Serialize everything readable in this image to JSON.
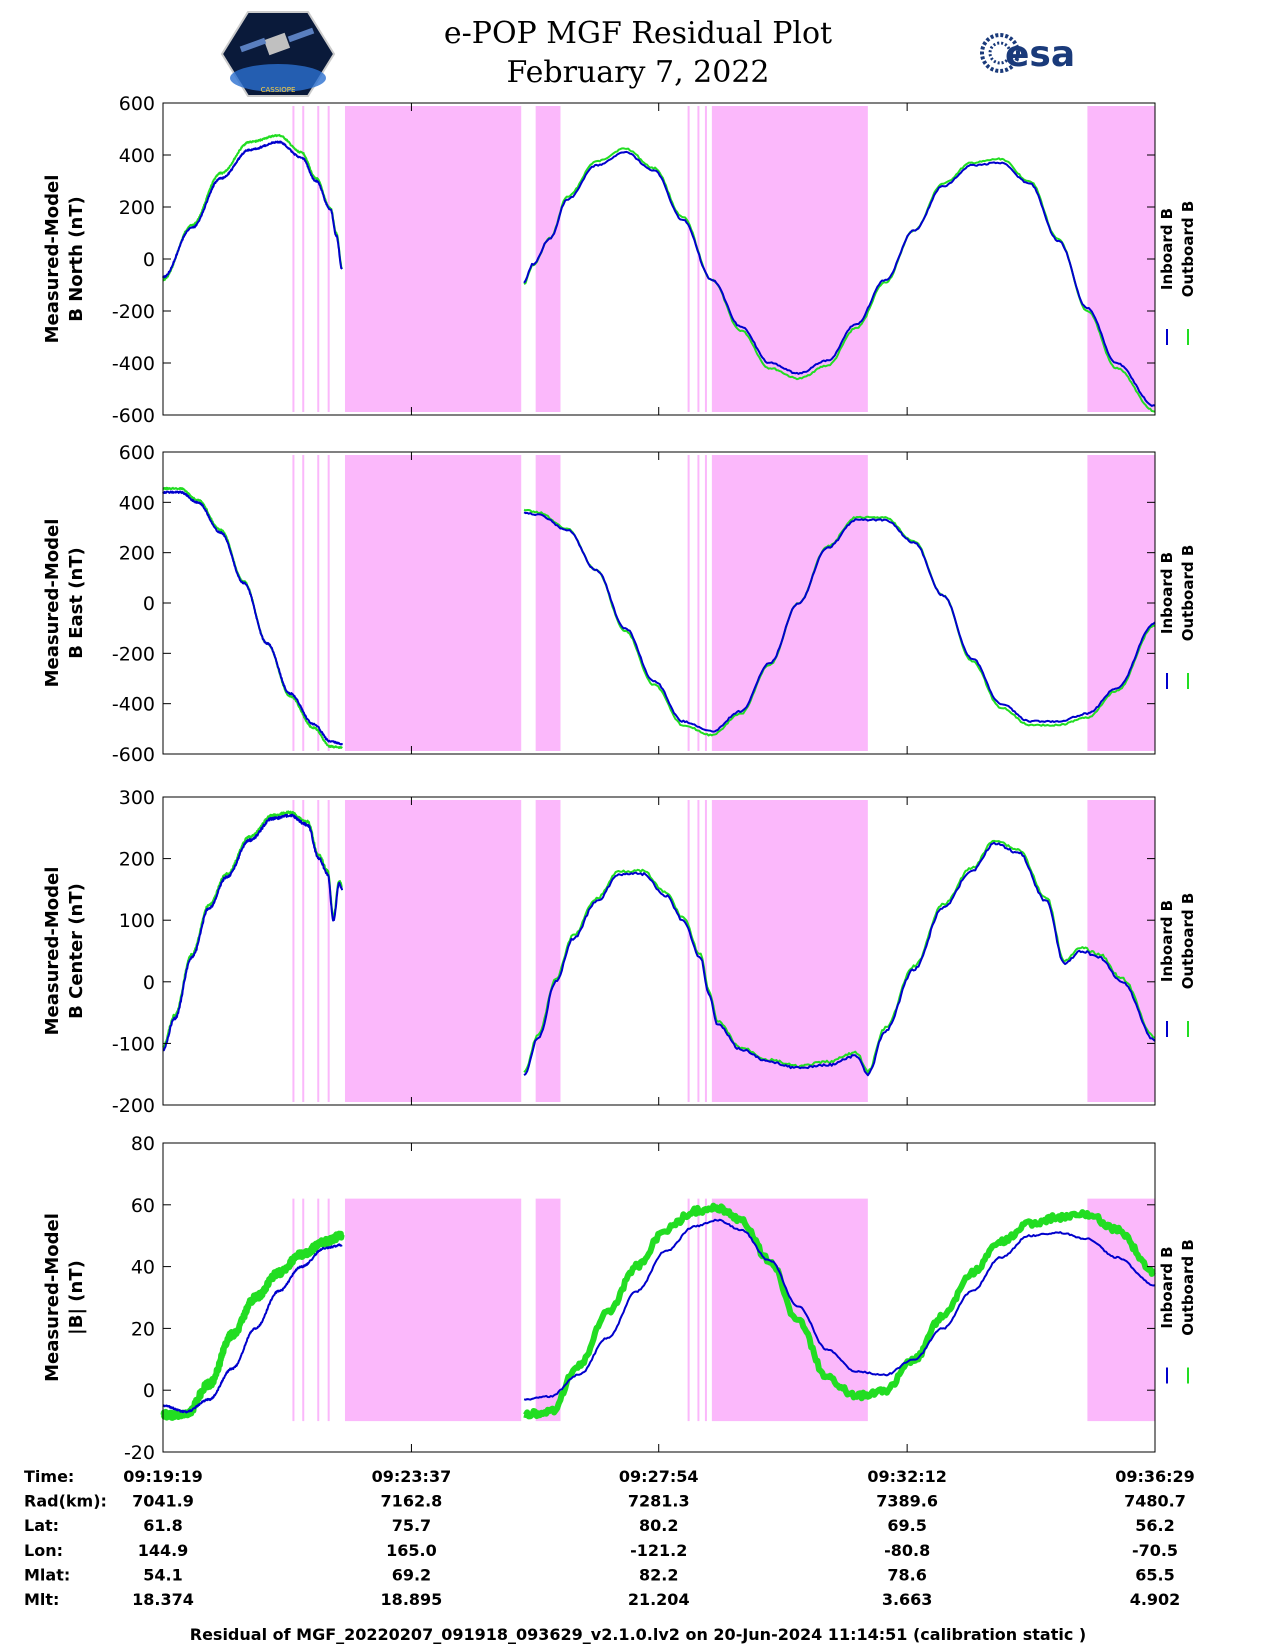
{
  "chart_data": {
    "type": "line",
    "title": "e-POP MGF Residual Plot",
    "subtitle": "February 7, 2022",
    "logos": {
      "left": "CASSIOPE",
      "right": "esa"
    },
    "colors": {
      "inboard": "#0000cc",
      "outboard": "#22dd22",
      "gap_shading": "#fbb8fb"
    },
    "legend": [
      "Inboard B",
      "Outboard B"
    ],
    "legend_position": "right",
    "x_minutes_range": [
      0,
      17.17
    ],
    "x_ticks_minutes": [
      0,
      4.3,
      8.58,
      12.88,
      17.17
    ],
    "gaps_minutes": [
      [
        2.24,
        2.27
      ],
      [
        2.41,
        2.44
      ],
      [
        2.67,
        2.7
      ],
      [
        2.85,
        2.88
      ],
      [
        3.15,
        6.2
      ],
      [
        6.45,
        6.88
      ],
      [
        9.08,
        9.11
      ],
      [
        9.25,
        9.28
      ],
      [
        9.38,
        9.41
      ],
      [
        9.5,
        12.2
      ],
      [
        16.0,
        17.17
      ]
    ],
    "panels": [
      {
        "ylabel_line1": "Measured-Model",
        "ylabel_line2": "B North (nT)",
        "ylim": [
          -600,
          600
        ],
        "yticks": [
          "600",
          "400",
          "200",
          "0",
          "-200",
          "-400",
          "-600"
        ],
        "series": [
          {
            "name": "Inboard B",
            "segments": [
              {
                "x": [
                  0,
                  0.5,
                  1.0,
                  1.5,
                  2.0,
                  2.4,
                  2.65,
                  2.9,
                  3.0,
                  3.1
                ],
                "y": [
                  -70,
                  120,
                  310,
                  420,
                  450,
                  390,
                  300,
                  190,
                  90,
                  -40
                ]
              },
              {
                "x": [
                  6.25,
                  6.4,
                  6.7,
                  7.0,
                  7.5,
                  8.0,
                  8.5,
                  9.0,
                  9.5,
                  10.0,
                  10.5,
                  11.0,
                  11.5,
                  12.0,
                  12.5,
                  13.0,
                  13.5,
                  14.0,
                  14.5,
                  15.0,
                  15.5,
                  16.0,
                  16.5,
                  17.17
                ],
                "y": [
                  -90,
                  -20,
                  80,
                  230,
                  360,
                  410,
                  340,
                  150,
                  -80,
                  -260,
                  -400,
                  -440,
                  -390,
                  -250,
                  -80,
                  110,
                  280,
                  360,
                  370,
                  290,
                  70,
                  -190,
                  -400,
                  -565
                ]
              }
            ]
          },
          {
            "name": "Outboard B",
            "segments": [
              {
                "x": [
                  0,
                  0.5,
                  1.0,
                  1.5,
                  2.0,
                  2.4,
                  2.65,
                  2.9,
                  3.0,
                  3.1
                ],
                "y": [
                  -80,
                  130,
                  330,
                  450,
                  475,
                  410,
                  310,
                  195,
                  100,
                  -35
                ]
              },
              {
                "x": [
                  6.25,
                  6.4,
                  6.7,
                  7.0,
                  7.5,
                  8.0,
                  8.5,
                  9.0,
                  9.5,
                  10.0,
                  10.5,
                  11.0,
                  11.5,
                  12.0,
                  12.5,
                  13.0,
                  13.5,
                  14.0,
                  14.5,
                  15.0,
                  15.5,
                  16.0,
                  16.5,
                  17.17
                ],
                "y": [
                  -95,
                  -25,
                  80,
                  240,
                  375,
                  425,
                  350,
                  160,
                  -80,
                  -275,
                  -420,
                  -460,
                  -410,
                  -265,
                  -90,
                  110,
                  290,
                  370,
                  385,
                  300,
                  75,
                  -200,
                  -420,
                  -585
                ]
              }
            ]
          }
        ]
      },
      {
        "ylabel_line1": "Measured-Model",
        "ylabel_line2": "B East (nT)",
        "ylim": [
          -600,
          600
        ],
        "yticks": [
          "600",
          "400",
          "200",
          "0",
          "-200",
          "-400",
          "-600"
        ],
        "series": [
          {
            "name": "Inboard B",
            "segments": [
              {
                "x": [
                  0,
                  0.3,
                  0.6,
                  1.0,
                  1.4,
                  1.8,
                  2.2,
                  2.6,
                  2.9,
                  3.1
                ],
                "y": [
                  440,
                  440,
                  400,
                  280,
                  80,
                  -160,
                  -360,
                  -480,
                  -550,
                  -560
                ]
              },
              {
                "x": [
                  6.25,
                  6.5,
                  7.0,
                  7.5,
                  8.0,
                  8.5,
                  9.0,
                  9.5,
                  10.0,
                  10.5,
                  11.0,
                  11.5,
                  12.0,
                  12.5,
                  13.0,
                  13.5,
                  14.0,
                  14.5,
                  15.0,
                  15.5,
                  16.0,
                  16.5,
                  17.17
                ],
                "y": [
                  360,
                  350,
                  290,
                  130,
                  -100,
                  -310,
                  -470,
                  -510,
                  -430,
                  -240,
                  0,
                  220,
                  330,
                  330,
                  240,
                  30,
                  -220,
                  -400,
                  -470,
                  -470,
                  -440,
                  -340,
                  -80
                ]
              }
            ]
          },
          {
            "name": "Outboard B",
            "segments": [
              {
                "x": [
                  0,
                  0.3,
                  0.6,
                  1.0,
                  1.4,
                  1.8,
                  2.2,
                  2.6,
                  2.9,
                  3.1
                ],
                "y": [
                  455,
                  455,
                  410,
                  290,
                  85,
                  -160,
                  -370,
                  -495,
                  -570,
                  -575
                ]
              },
              {
                "x": [
                  6.25,
                  6.5,
                  7.0,
                  7.5,
                  8.0,
                  8.5,
                  9.0,
                  9.5,
                  10.0,
                  10.5,
                  11.0,
                  11.5,
                  12.0,
                  12.5,
                  13.0,
                  13.5,
                  14.0,
                  14.5,
                  15.0,
                  15.5,
                  16.0,
                  16.5,
                  17.17
                ],
                "y": [
                  370,
                  360,
                  295,
                  130,
                  -110,
                  -325,
                  -485,
                  -525,
                  -440,
                  -245,
                  0,
                  225,
                  340,
                  340,
                  245,
                  30,
                  -230,
                  -415,
                  -485,
                  -485,
                  -455,
                  -350,
                  -90
                ]
              }
            ]
          }
        ]
      },
      {
        "ylabel_line1": "Measured-Model",
        "ylabel_line2": "B Center (nT)",
        "ylim": [
          -200,
          300
        ],
        "yticks": [
          "300",
          "200",
          "100",
          "0",
          "-100",
          "-200"
        ],
        "series": [
          {
            "name": "Inboard B",
            "segments": [
              {
                "x": [
                  0,
                  0.2,
                  0.5,
                  0.8,
                  1.1,
                  1.5,
                  1.9,
                  2.2,
                  2.5,
                  2.7,
                  2.85,
                  2.95,
                  3.05,
                  3.1
                ],
                "y": [
                  -110,
                  -60,
                  40,
                  120,
                  170,
                  230,
                  265,
                  270,
                  255,
                  200,
                  175,
                  100,
                  160,
                  150
                ]
              },
              {
                "x": [
                  6.25,
                  6.5,
                  6.8,
                  7.1,
                  7.5,
                  7.9,
                  8.3,
                  8.7,
                  9.0,
                  9.3,
                  9.45,
                  9.6,
                  10.0,
                  10.5,
                  11.0,
                  11.5,
                  12.0,
                  12.2,
                  12.5,
                  13.0,
                  13.5,
                  14.0,
                  14.4,
                  14.8,
                  15.3,
                  15.6,
                  15.9,
                  16.2,
                  16.6,
                  17.17
                ],
                "y": [
                  -150,
                  -90,
                  0,
                  70,
                  130,
                  175,
                  175,
                  140,
                  100,
                  40,
                  -20,
                  -70,
                  -110,
                  -130,
                  -140,
                  -135,
                  -120,
                  -150,
                  -80,
                  20,
                  120,
                  180,
                  225,
                  210,
                  130,
                  30,
                  50,
                  40,
                  0,
                  -95
                ]
              }
            ]
          },
          {
            "name": "Outboard B",
            "segments": [
              {
                "x": [
                  0,
                  0.2,
                  0.5,
                  0.8,
                  1.1,
                  1.5,
                  1.9,
                  2.2,
                  2.5,
                  2.7,
                  2.85,
                  2.95,
                  3.05,
                  3.1
                ],
                "y": [
                  -105,
                  -55,
                  45,
                  125,
                  175,
                  235,
                  270,
                  275,
                  260,
                  205,
                  180,
                  105,
                  165,
                  155
                ]
              },
              {
                "x": [
                  6.25,
                  6.5,
                  6.8,
                  7.1,
                  7.5,
                  7.9,
                  8.3,
                  8.7,
                  9.0,
                  9.3,
                  9.45,
                  9.6,
                  10.0,
                  10.5,
                  11.0,
                  11.5,
                  12.0,
                  12.2,
                  12.5,
                  13.0,
                  13.5,
                  14.0,
                  14.4,
                  14.8,
                  15.3,
                  15.6,
                  15.9,
                  16.2,
                  16.6,
                  17.17
                ],
                "y": [
                  -145,
                  -85,
                  5,
                  75,
                  135,
                  180,
                  180,
                  145,
                  105,
                  45,
                  -15,
                  -65,
                  -107,
                  -127,
                  -137,
                  -130,
                  -115,
                  -145,
                  -75,
                  25,
                  125,
                  185,
                  230,
                  215,
                  135,
                  35,
                  55,
                  45,
                  5,
                  -90
                ]
              }
            ]
          }
        ]
      },
      {
        "ylabel_line1": "Measured-Model",
        "ylabel_line2": "|B| (nT)",
        "ylim": [
          -20,
          80
        ],
        "yticks": [
          "80",
          "60",
          "40",
          "20",
          "0",
          "-20"
        ],
        "series": [
          {
            "name": "Inboard B",
            "segments": [
              {
                "x": [
                  0,
                  0.4,
                  0.8,
                  1.2,
                  1.6,
                  2.0,
                  2.4,
                  2.8,
                  3.1
                ],
                "y": [
                  -5,
                  -7,
                  -3,
                  7,
                  20,
                  32,
                  40,
                  46,
                  47
                ]
              },
              {
                "x": [
                  6.25,
                  6.7,
                  7.2,
                  7.7,
                  8.2,
                  8.7,
                  9.2,
                  9.6,
                  10.0,
                  10.5,
                  11.0,
                  11.5,
                  12.0,
                  12.5,
                  13.0,
                  13.5,
                  14.0,
                  14.5,
                  15.0,
                  15.5,
                  16.0,
                  16.5,
                  17.17
                ],
                "y": [
                  -3,
                  -2,
                  5,
                  17,
                  32,
                  45,
                  53,
                  55,
                  52,
                  42,
                  27,
                  13,
                  6,
                  5,
                  10,
                  20,
                  32,
                  43,
                  50,
                  51,
                  49,
                  43,
                  34
                ]
              }
            ]
          },
          {
            "name": "Outboard B",
            "segments": [
              {
                "x": [
                  0,
                  0.4,
                  0.8,
                  1.2,
                  1.6,
                  2.0,
                  2.4,
                  2.8,
                  3.1
                ],
                "y": [
                  -8,
                  -8,
                  2,
                  18,
                  30,
                  38,
                  44,
                  48,
                  50
                ]
              },
              {
                "x": [
                  6.25,
                  6.7,
                  7.2,
                  7.7,
                  8.2,
                  8.7,
                  9.2,
                  9.6,
                  10.0,
                  10.5,
                  11.0,
                  11.5,
                  12.0,
                  12.5,
                  13.0,
                  13.5,
                  14.0,
                  14.5,
                  15.0,
                  15.5,
                  16.0,
                  16.5,
                  17.17
                ],
                "y": [
                  -8,
                  -7,
                  8,
                  25,
                  40,
                  52,
                  58,
                  59,
                  55,
                  42,
                  22,
                  4,
                  -2,
                  0,
                  10,
                  24,
                  38,
                  48,
                  54,
                  56,
                  57,
                  52,
                  38
                ]
              }
            ]
          }
        ]
      }
    ],
    "info_table": {
      "row_labels": [
        "Time:",
        "Rad(km):",
        "Lat:",
        "Lon:",
        "Mlat:",
        "Mlt:"
      ],
      "columns": [
        [
          "09:19:19",
          "7041.9",
          "61.8",
          "144.9",
          "54.1",
          "18.374"
        ],
        [
          "09:23:37",
          "7162.8",
          "75.7",
          "165.0",
          "69.2",
          "18.895"
        ],
        [
          "09:27:54",
          "7281.3",
          "80.2",
          "-121.2",
          "82.2",
          "21.204"
        ],
        [
          "09:32:12",
          "7389.6",
          "69.5",
          "-80.8",
          "78.6",
          "3.663"
        ],
        [
          "09:36:29",
          "7480.7",
          "56.2",
          "-70.5",
          "65.5",
          "4.902"
        ]
      ]
    },
    "footer": "Residual of MGF_20220207_091918_093629_v2.1.0.lv2 on 20-Jun-2024 11:14:51 (calibration static )"
  }
}
